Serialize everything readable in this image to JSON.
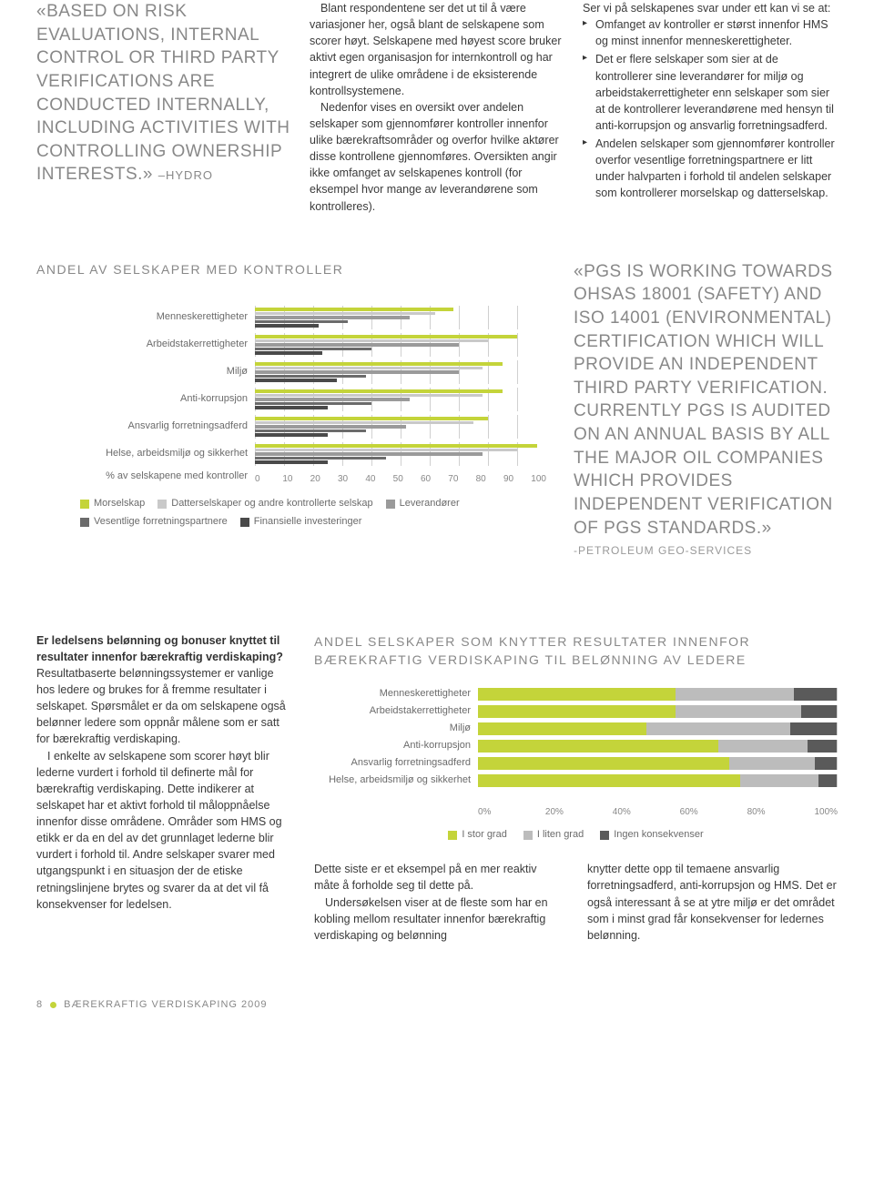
{
  "colors": {
    "gray_text": "#888888",
    "body_text": "#3a3a3a",
    "label_text": "#6b6b6b"
  },
  "top": {
    "quote": "«BASED ON RISK EVALUATIONS, INTERNAL CONTROL OR THIRD PARTY VERIFICATIONS ARE CONDUCTED INTERNALLY, INCLUDING ACTIVITIES WITH CONTROLLING OWNERSHIP INTERESTS.»",
    "quote_attrib": "–HYDRO",
    "col2_p1": "Blant respondentene ser det ut til å være variasjoner her, også blant de selskapene som scorer høyt. Selskapene med høyest score bruker aktivt egen organisasjon for internkontroll og har integrert de ulike områdene i de eksisterende kontrollsystemene.",
    "col2_p2": "Nedenfor vises en oversikt over andelen selskaper som gjennomfører kontroller innenfor ulike bærekraftsområder og overfor hvilke aktører disse kontrollene gjennomføres. Oversikten angir ikke omfanget av selskapenes kontroll (for eksempel hvor mange av leverandørene som kontrolleres).",
    "col3_intro": "Ser vi på selskapenes svar under ett kan vi se at:",
    "col3_b1": "Omfanget av kontroller er størst innenfor HMS og minst innenfor menneskerettigheter.",
    "col3_b2": "Det er flere selskaper som sier at de kontrollerer sine leverandører for miljø og arbeidstakerrettigheter enn selskaper som sier at de kontrollerer leverandørene med hensyn til anti-korrupsjon og ansvarlig forretningsadferd.",
    "col3_b3": "Andelen selskaper som gjennomfører kontroller overfor vesentlige forretningspartnere er litt under halvparten i forhold til andelen selskaper som kontrollerer morselskap og datterselskap."
  },
  "chart1": {
    "title": "ANDEL AV SELSKAPER MED KONTROLLER",
    "axis_caption": "% av selskapene med kontroller",
    "ticks": [
      "0",
      "10",
      "20",
      "30",
      "40",
      "50",
      "60",
      "70",
      "80",
      "90",
      "100"
    ],
    "series_colors": [
      "#c4d43a",
      "#c9c9c9",
      "#9a9a9a",
      "#6b6b6b",
      "#4a4a4a"
    ],
    "series_labels": [
      "Morselskap",
      "Datterselskaper og andre kontrollerte selskap",
      "Leverandører",
      "Vesentlige forretningspartnere",
      "Finansielle investeringer"
    ],
    "categories": [
      {
        "label": "Menneskerettigheter",
        "values": [
          68,
          62,
          53,
          32,
          22
        ]
      },
      {
        "label": "Arbeidstakerrettigheter",
        "values": [
          90,
          80,
          70,
          40,
          23
        ]
      },
      {
        "label": "Miljø",
        "values": [
          85,
          78,
          70,
          38,
          28
        ]
      },
      {
        "label": "Anti-korrupsjon",
        "values": [
          85,
          78,
          53,
          40,
          25
        ]
      },
      {
        "label": "Ansvarlig forretningsadferd",
        "values": [
          80,
          75,
          52,
          38,
          25
        ]
      },
      {
        "label": "Helse, arbeidsmiljø og sikkerhet",
        "values": [
          97,
          90,
          78,
          45,
          25
        ]
      }
    ]
  },
  "quote2": {
    "text": "«PGS IS WORKING TOWARDS OHSAS 18001 (SAFETY) AND ISO 14001 (ENVIRONMENTAL) CERTIFICATION WHICH WILL PROVIDE AN INDEPENDENT THIRD PARTY VERIFICATION. CURRENTLY PGS IS AUDITED ON AN ANNUAL BASIS BY ALL THE MAJOR OIL COMPANIES WHICH PROVIDES INDEPENDENT VERIFICATION OF PGS STANDARDS.»",
    "attrib": "-PETROLEUM GEO-SERVICES"
  },
  "bottom": {
    "left_heading": "Er ledelsens belønning og bonuser knyttet til resultater innenfor bærekraftig verdiskaping?",
    "left_p1": "Resultatbaserte belønningssystemer er vanlige hos ledere og brukes for å fremme resultater i selskapet. Spørsmålet er da om selskapene også belønner ledere som oppnår målene som er satt for bærekraftig verdiskaping.",
    "left_p2": "I enkelte av selskapene som scorer høyt blir lederne vurdert i forhold til definerte mål for bærekraftig verdiskaping. Dette indikerer at selskapet har et aktivt forhold til måloppnåelse innenfor disse områdene. Områder som HMS og etikk er da en del av det grunnlaget lederne blir vurdert i forhold til. Andre selskaper svarer med utgangspunkt i en situasjon der de etiske retningslinjene brytes og svarer da at det vil få konsekvenser for ledelsen.",
    "right_heading": "ANDEL SELSKAPER SOM KNYTTER RESULTATER INNENFOR BÆREKRAFTIG VERDISKAPING TIL BELØNNING AV LEDERE",
    "body_c1_p1": "Dette siste er et eksempel på en mer reaktiv måte å forholde seg til dette på.",
    "body_c1_p2": "Undersøkelsen viser at de fleste som har en kobling mellom resultater innenfor bærekraftig verdiskaping og belønning",
    "body_c2": "knytter dette opp til temaene ansvarlig forretningsadferd, anti-korrupsjon og HMS. Det er også interessant å se at ytre miljø er det området som i minst grad får konsekvenser for ledernes belønning."
  },
  "chart2": {
    "ticks": [
      "0%",
      "20%",
      "40%",
      "60%",
      "80%",
      "100%"
    ],
    "series_colors": [
      "#c4d43a",
      "#bcbcbc",
      "#5a5a5a"
    ],
    "series_labels": [
      "I stor grad",
      "I liten grad",
      "Ingen konsekvenser"
    ],
    "categories": [
      {
        "label": "Menneskerettigheter",
        "values": [
          55,
          33,
          12
        ]
      },
      {
        "label": "Arbeidstakerrettigheter",
        "values": [
          55,
          35,
          10
        ]
      },
      {
        "label": "Miljø",
        "values": [
          47,
          40,
          13
        ]
      },
      {
        "label": "Anti-korrupsjon",
        "values": [
          67,
          25,
          8
        ]
      },
      {
        "label": "Ansvarlig forretningsadferd",
        "values": [
          70,
          24,
          6
        ]
      },
      {
        "label": "Helse, arbeidsmiljø og sikkerhet",
        "values": [
          73,
          22,
          5
        ]
      }
    ]
  },
  "footer": {
    "page": "8",
    "title": "BÆREKRAFTIG VERDISKAPING 2009",
    "dot_color": "#c4d43a"
  }
}
